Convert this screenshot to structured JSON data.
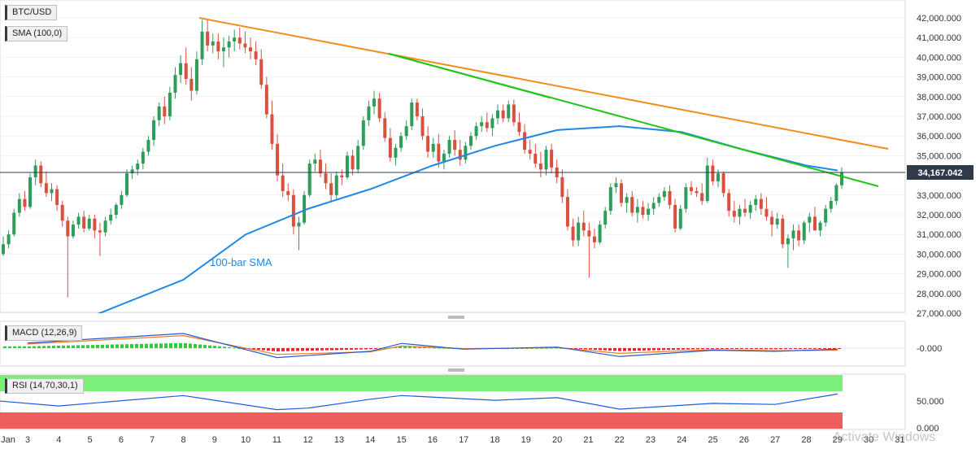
{
  "main_panel": {
    "symbol_label": "BTC/USD",
    "indicator_label": "SMA (100,0)",
    "sma_annotation": "100-bar SMA",
    "current_price_label": "34,167.042",
    "y_tick_labels": [
      "42,000.000",
      "41,000.000",
      "40,000.000",
      "39,000.000",
      "38,000.000",
      "37,000.000",
      "36,000.000",
      "35,000.000",
      "33,000.000",
      "32,000.000",
      "31,000.000",
      "30,000.000",
      "29,000.000",
      "28,000.000",
      "27,000.000"
    ]
  },
  "macd_panel": {
    "label": "MACD (12,26,9)",
    "zero_label": "-0.000"
  },
  "rsi_panel": {
    "label": "RSI (14,70,30,1)",
    "y_tick_labels": [
      "50.000",
      "0.000"
    ]
  },
  "x_axis": {
    "labels": [
      "Jan",
      "3",
      "4",
      "5",
      "6",
      "7",
      "8",
      "9",
      "10",
      "11",
      "12",
      "13",
      "14",
      "15",
      "16",
      "17",
      "18",
      "19",
      "20",
      "21",
      "22",
      "23",
      "24",
      "25",
      "26",
      "27",
      "28",
      "29",
      "30",
      "31"
    ]
  },
  "watermark": "Activate Windows",
  "colors": {
    "up": "#2e9c5a",
    "down": "#d9503f",
    "sma": "#1e88e5",
    "trend_orange": "#f28c1b",
    "trend_green": "#23c41a",
    "macd_line": "#2458d6",
    "signal_line": "#ef7a24",
    "rsi_line": "#2458d6",
    "rsi_overbought": "#7aef7a",
    "rsi_oversold": "#ef5d5d"
  },
  "chart_data": [
    {
      "type": "candlestick",
      "title": "BTC/USD",
      "ylim": [
        27000,
        42500
      ],
      "current_price": 34167.042,
      "key_points": [
        {
          "date": "Jan 2",
          "price": 30500
        },
        {
          "date": "Jan 4",
          "low": 27800
        },
        {
          "date": "Jan 8",
          "high": 41950
        },
        {
          "date": "Jan 11",
          "low": 30200
        },
        {
          "date": "Jan 14",
          "high": 40100
        },
        {
          "date": "Jan 19",
          "high": 37850
        },
        {
          "date": "Jan 22",
          "low": 28800
        },
        {
          "date": "Jan 25",
          "high": 34900
        },
        {
          "date": "Jan 27",
          "low": 29300
        },
        {
          "date": "Jan 29",
          "close": 34167
        }
      ],
      "candles_ohlc": [
        [
          30000,
          30900,
          29900,
          30500
        ],
        [
          30500,
          31200,
          30300,
          31000
        ],
        [
          31000,
          32300,
          30900,
          32100
        ],
        [
          32100,
          33100,
          31900,
          32800
        ],
        [
          32800,
          33200,
          32200,
          32400
        ],
        [
          32400,
          34100,
          32300,
          33900
        ],
        [
          33900,
          34800,
          33500,
          34500
        ],
        [
          34500,
          34700,
          33400,
          33600
        ],
        [
          33600,
          34200,
          32900,
          33100
        ],
        [
          33100,
          33600,
          32700,
          33300
        ],
        [
          33300,
          33500,
          32200,
          32500
        ],
        [
          32500,
          32700,
          31400,
          31700
        ],
        [
          31700,
          31900,
          27800,
          30900
        ],
        [
          30900,
          31700,
          30800,
          31500
        ],
        [
          31500,
          32100,
          31300,
          31900
        ],
        [
          31900,
          32200,
          31100,
          31300
        ],
        [
          31300,
          32000,
          31200,
          31800
        ],
        [
          31800,
          32000,
          30800,
          31200
        ],
        [
          31200,
          31600,
          29900,
          31100
        ],
        [
          31100,
          31900,
          30900,
          31700
        ],
        [
          31700,
          32300,
          31500,
          32000
        ],
        [
          32000,
          32600,
          31800,
          32500
        ],
        [
          32500,
          33200,
          32300,
          33000
        ],
        [
          33000,
          34300,
          32900,
          34100
        ],
        [
          34100,
          34500,
          33800,
          34300
        ],
        [
          34300,
          34800,
          34000,
          34600
        ],
        [
          34600,
          35400,
          34300,
          35200
        ],
        [
          35200,
          36000,
          35000,
          35800
        ],
        [
          35800,
          37000,
          35500,
          36800
        ],
        [
          36800,
          37700,
          36500,
          37500
        ],
        [
          37500,
          38000,
          36600,
          37000
        ],
        [
          37000,
          38500,
          36800,
          38200
        ],
        [
          38200,
          39500,
          37900,
          39100
        ],
        [
          39100,
          40100,
          38700,
          39700
        ],
        [
          39700,
          40500,
          38600,
          38900
        ],
        [
          38900,
          39500,
          37800,
          38300
        ],
        [
          38300,
          40300,
          38100,
          39900
        ],
        [
          39900,
          41900,
          39600,
          41300
        ],
        [
          41300,
          41900,
          40300,
          40600
        ],
        [
          40600,
          41200,
          40200,
          40800
        ],
        [
          40800,
          41200,
          39900,
          40300
        ],
        [
          40300,
          41000,
          39500,
          40500
        ],
        [
          40500,
          41100,
          40000,
          40800
        ],
        [
          40800,
          41400,
          40300,
          41000
        ],
        [
          41000,
          41500,
          40400,
          40700
        ],
        [
          40700,
          41300,
          40200,
          40500
        ],
        [
          40500,
          41000,
          39900,
          40300
        ],
        [
          40300,
          40800,
          39600,
          39900
        ],
        [
          39900,
          40400,
          38400,
          38600
        ],
        [
          38600,
          39000,
          36900,
          37100
        ],
        [
          37100,
          37800,
          35300,
          35600
        ],
        [
          35600,
          36100,
          33700,
          34000
        ],
        [
          34000,
          34600,
          32900,
          33200
        ],
        [
          33200,
          33600,
          32700,
          33000
        ],
        [
          33000,
          33300,
          31000,
          31400
        ],
        [
          31400,
          31900,
          30200,
          31600
        ],
        [
          31600,
          33200,
          31500,
          33000
        ],
        [
          33000,
          34800,
          32900,
          34600
        ],
        [
          34600,
          35100,
          34200,
          34800
        ],
        [
          34800,
          35300,
          33900,
          34100
        ],
        [
          34100,
          34600,
          33300,
          33600
        ],
        [
          33600,
          34100,
          32700,
          33000
        ],
        [
          33000,
          34200,
          32800,
          34000
        ],
        [
          34000,
          34300,
          33500,
          33900
        ],
        [
          33900,
          35200,
          33800,
          35000
        ],
        [
          35000,
          35300,
          34000,
          34300
        ],
        [
          34300,
          35800,
          34100,
          35500
        ],
        [
          35500,
          37000,
          35300,
          36800
        ],
        [
          36800,
          37800,
          36500,
          37500
        ],
        [
          37500,
          38300,
          37100,
          37900
        ],
        [
          37900,
          38200,
          36700,
          36900
        ],
        [
          36900,
          37200,
          35700,
          35900
        ],
        [
          35900,
          36400,
          34700,
          34900
        ],
        [
          34900,
          35600,
          34500,
          35400
        ],
        [
          35400,
          36200,
          35200,
          36000
        ],
        [
          36000,
          36800,
          35800,
          36500
        ],
        [
          36500,
          37900,
          36300,
          37700
        ],
        [
          37700,
          37900,
          36800,
          37000
        ],
        [
          37000,
          37400,
          35800,
          36000
        ],
        [
          36000,
          36500,
          34900,
          35200
        ],
        [
          35200,
          35900,
          34900,
          35600
        ],
        [
          35600,
          36100,
          34400,
          34700
        ],
        [
          34700,
          35300,
          34300,
          35100
        ],
        [
          35100,
          36000,
          34900,
          35800
        ],
        [
          35800,
          36300,
          35000,
          35300
        ],
        [
          35300,
          35800,
          34500,
          34800
        ],
        [
          34800,
          35700,
          34600,
          35500
        ],
        [
          35500,
          36200,
          35300,
          36000
        ],
        [
          36000,
          36700,
          35800,
          36500
        ],
        [
          36500,
          37000,
          36200,
          36700
        ],
        [
          36700,
          37200,
          36200,
          36400
        ],
        [
          36400,
          37100,
          36000,
          36900
        ],
        [
          36900,
          37600,
          36600,
          37300
        ],
        [
          37300,
          37600,
          36700,
          36900
        ],
        [
          36900,
          37800,
          36700,
          37600
        ],
        [
          37600,
          37850,
          36500,
          36700
        ],
        [
          36700,
          37200,
          36000,
          36200
        ],
        [
          36200,
          36600,
          35100,
          35300
        ],
        [
          35300,
          35800,
          34800,
          35100
        ],
        [
          35100,
          35600,
          34400,
          34600
        ],
        [
          34600,
          35200,
          33900,
          34300
        ],
        [
          34300,
          35500,
          34000,
          35300
        ],
        [
          35300,
          35600,
          34100,
          34400
        ],
        [
          34400,
          34800,
          33600,
          33900
        ],
        [
          33900,
          34300,
          32600,
          32900
        ],
        [
          32900,
          33300,
          31200,
          31400
        ],
        [
          31400,
          31800,
          30400,
          30700
        ],
        [
          30700,
          31900,
          30400,
          31600
        ],
        [
          31600,
          32200,
          30900,
          31200
        ],
        [
          31200,
          31600,
          28800,
          30900
        ],
        [
          30900,
          31300,
          30300,
          30600
        ],
        [
          30600,
          31700,
          30500,
          31500
        ],
        [
          31500,
          32400,
          31300,
          32200
        ],
        [
          32200,
          33600,
          32000,
          33400
        ],
        [
          33400,
          33900,
          33100,
          33600
        ],
        [
          33600,
          33800,
          32400,
          32600
        ],
        [
          32600,
          33100,
          32100,
          32900
        ],
        [
          32900,
          33200,
          31900,
          32100
        ],
        [
          32100,
          32800,
          31600,
          32400
        ],
        [
          32400,
          32700,
          31800,
          32000
        ],
        [
          32000,
          32600,
          31700,
          32300
        ],
        [
          32300,
          32900,
          32000,
          32600
        ],
        [
          32600,
          33100,
          32400,
          32900
        ],
        [
          32900,
          33400,
          32700,
          33200
        ],
        [
          33200,
          33500,
          32300,
          32500
        ],
        [
          32500,
          32800,
          31100,
          31300
        ],
        [
          31300,
          32500,
          31200,
          32300
        ],
        [
          32300,
          33600,
          32100,
          33400
        ],
        [
          33400,
          33700,
          33000,
          33200
        ],
        [
          33200,
          33400,
          32900,
          33100
        ],
        [
          33100,
          33600,
          32500,
          32700
        ],
        [
          32700,
          34900,
          32600,
          34500
        ],
        [
          34500,
          34800,
          33500,
          33700
        ],
        [
          33700,
          34300,
          33400,
          34100
        ],
        [
          34100,
          34200,
          32900,
          33100
        ],
        [
          33100,
          33300,
          31900,
          32200
        ],
        [
          32200,
          32700,
          31600,
          31900
        ],
        [
          31900,
          32500,
          31500,
          32300
        ],
        [
          32300,
          32800,
          31900,
          32100
        ],
        [
          32100,
          32700,
          31800,
          32500
        ],
        [
          32500,
          33000,
          32200,
          32800
        ],
        [
          32800,
          33100,
          32000,
          32300
        ],
        [
          32300,
          32900,
          31700,
          31900
        ],
        [
          31900,
          32200,
          30900,
          31500
        ],
        [
          31500,
          32100,
          31300,
          31800
        ],
        [
          31800,
          32000,
          30300,
          30500
        ],
        [
          30500,
          31000,
          29300,
          30800
        ],
        [
          30800,
          31500,
          30200,
          31200
        ],
        [
          31200,
          31500,
          30400,
          30700
        ],
        [
          30700,
          31700,
          30500,
          31600
        ],
        [
          31600,
          32100,
          31100,
          31900
        ],
        [
          31900,
          32400,
          31500,
          31200
        ],
        [
          31200,
          31700,
          30900,
          31600
        ],
        [
          31600,
          32500,
          31400,
          32300
        ],
        [
          32300,
          32900,
          32100,
          32700
        ],
        [
          32700,
          33600,
          32500,
          33500
        ],
        [
          33500,
          34400,
          33300,
          34167
        ]
      ]
    },
    {
      "type": "line",
      "name": "100-bar SMA",
      "x": [
        "Jan 5",
        "Jan 8",
        "Jan 10",
        "Jan 12",
        "Jan 14",
        "Jan 16",
        "Jan 18",
        "Jan 20",
        "Jan 22",
        "Jan 24",
        "Jan 26",
        "Jan 28",
        "Jan 29"
      ],
      "values": [
        26800,
        28700,
        31000,
        32300,
        33300,
        34500,
        35500,
        36300,
        36500,
        36200,
        35300,
        34500,
        34250
      ]
    },
    {
      "type": "line",
      "name": "MACD (12,26,9)",
      "x": [
        "Jan 3",
        "Jan 8",
        "Jan 11",
        "Jan 14",
        "Jan 15",
        "Jan 17",
        "Jan 20",
        "Jan 22",
        "Jan 25",
        "Jan 27",
        "Jan 29"
      ],
      "macd": [
        500,
        1400,
        -900,
        -300,
        450,
        -100,
        100,
        -800,
        -200,
        -300,
        -100
      ],
      "signal": [
        400,
        1200,
        -600,
        -350,
        200,
        -50,
        50,
        -500,
        -150,
        -250,
        -200
      ]
    },
    {
      "type": "line",
      "name": "RSI (14,70,30,1)",
      "ylim": [
        0,
        100
      ],
      "x": [
        "Jan 2",
        "Jan 4",
        "Jan 8",
        "Jan 11",
        "Jan 12",
        "Jan 14",
        "Jan 15",
        "Jan 18",
        "Jan 20",
        "Jan 22",
        "Jan 25",
        "Jan 27",
        "Jan 29"
      ],
      "values": [
        52,
        42,
        62,
        35,
        38,
        55,
        62,
        53,
        58,
        36,
        47,
        45,
        65
      ]
    }
  ]
}
